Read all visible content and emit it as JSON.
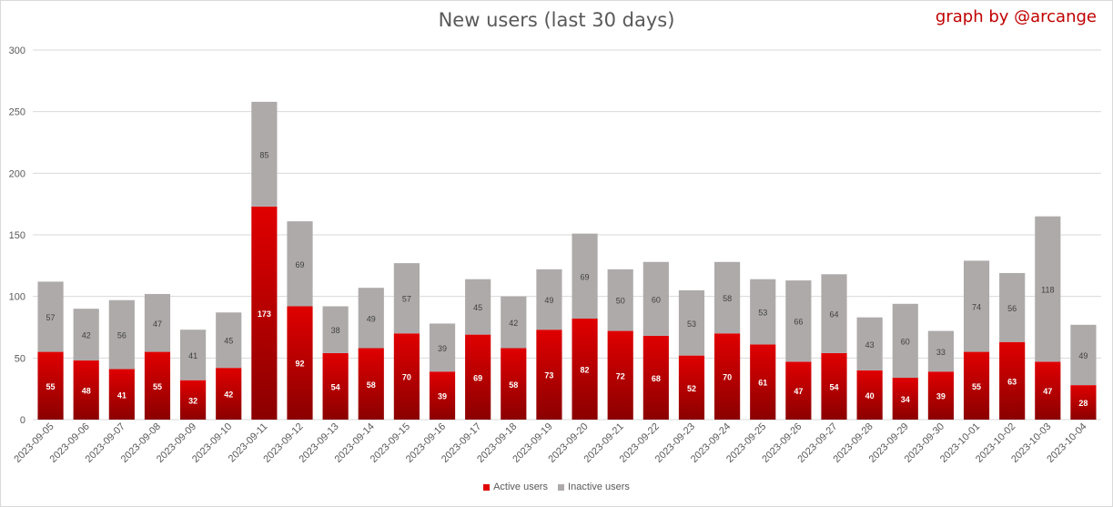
{
  "header": {
    "title": "New users (last 30 days)",
    "credit": "graph by @arcange"
  },
  "colors": {
    "active_top": "#e00000",
    "active_bottom": "#8b0000",
    "inactive": "#aeaaaa",
    "grid": "#d9d9d9",
    "text": "#595959"
  },
  "chart_data": {
    "type": "bar",
    "stacked": true,
    "title": "New users (last 30 days)",
    "xlabel": "",
    "ylabel": "",
    "ylim": [
      0,
      300
    ],
    "yticks": [
      0,
      50,
      100,
      150,
      200,
      250,
      300
    ],
    "grid": true,
    "legend_position": "bottom",
    "categories": [
      "2023-09-05",
      "2023-09-06",
      "2023-09-07",
      "2023-09-08",
      "2023-09-09",
      "2023-09-10",
      "2023-09-11",
      "2023-09-12",
      "2023-09-13",
      "2023-09-14",
      "2023-09-15",
      "2023-09-16",
      "2023-09-17",
      "2023-09-18",
      "2023-09-19",
      "2023-09-20",
      "2023-09-21",
      "2023-09-22",
      "2023-09-23",
      "2023-09-24",
      "2023-09-25",
      "2023-09-26",
      "2023-09-27",
      "2023-09-28",
      "2023-09-29",
      "2023-09-30",
      "2023-10-01",
      "2023-10-02",
      "2023-10-03",
      "2023-10-04"
    ],
    "series": [
      {
        "name": "Active users",
        "values": [
          55,
          48,
          41,
          55,
          32,
          42,
          173,
          92,
          54,
          58,
          70,
          39,
          69,
          58,
          73,
          82,
          72,
          68,
          52,
          70,
          61,
          47,
          54,
          40,
          34,
          39,
          55,
          63,
          47,
          28
        ]
      },
      {
        "name": "Inactive users",
        "values": [
          57,
          42,
          56,
          47,
          41,
          45,
          85,
          69,
          38,
          49,
          57,
          39,
          45,
          42,
          49,
          69,
          50,
          60,
          53,
          58,
          53,
          66,
          64,
          43,
          60,
          33,
          74,
          56,
          118,
          49
        ]
      }
    ]
  }
}
